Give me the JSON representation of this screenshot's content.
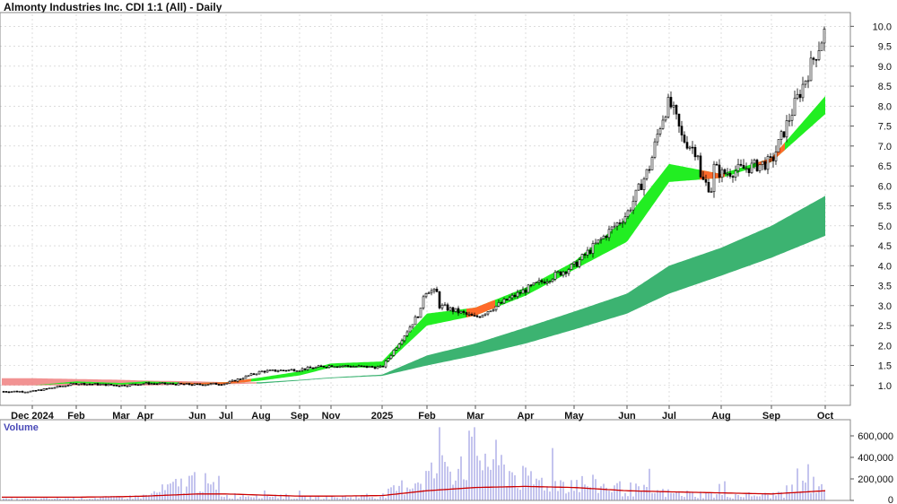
{
  "title": "Almonty Industries Inc. CDI 1:1 (All) - Daily",
  "volume_label": "Volume",
  "colors": {
    "price_bar": "#000000",
    "short_band_up": "#22ee22",
    "short_band_down": "#ff6a2a",
    "long_band": "#3cb371",
    "long_band_early": "#f08080",
    "volume_bar": "#8888dd",
    "volume_avg": "#cc0000",
    "grid": "#c8c8c8"
  },
  "chart_data": [
    {
      "type": "candlestick",
      "title": "Almonty Industries Inc. CDI 1:1 (All) - Daily",
      "x_ticks": [
        "Dec 2024",
        "Feb",
        "Mar",
        "Apr",
        "Jun",
        "Jul",
        "Aug",
        "Sep",
        "Nov",
        "2025",
        "Feb",
        "Mar",
        "Apr",
        "May",
        "Jun",
        "Jul",
        "Aug",
        "Sep",
        "Oct"
      ],
      "y_ticks": [
        "1.0",
        "1.5",
        "2.0",
        "2.5",
        "3.0",
        "3.5",
        "4.0",
        "4.5",
        "5.0",
        "5.5",
        "6.0",
        "6.5",
        "7.0",
        "7.5",
        "8.0",
        "8.5",
        "9.0",
        "9.5",
        "10.0"
      ],
      "ylim": [
        0.5,
        10.3
      ],
      "price_series": [
        [
          "Dec 2024",
          0.85
        ],
        [
          "Feb",
          1.05
        ],
        [
          "Mar",
          1.0
        ],
        [
          "Apr",
          1.05
        ],
        [
          "Jun",
          1.02
        ],
        [
          "Jul",
          1.05
        ],
        [
          "Aug",
          1.35
        ],
        [
          "Sep",
          1.4
        ],
        [
          "Nov",
          1.5
        ],
        [
          "2025",
          1.45
        ],
        [
          "Feb",
          3.1
        ],
        [
          "Mar",
          2.7
        ],
        [
          "Apr",
          3.4
        ],
        [
          "May",
          4.0
        ],
        [
          "Jun",
          5.3
        ],
        [
          "Jul",
          7.5
        ],
        [
          "Aug",
          6.3
        ],
        [
          "Sep",
          6.6
        ],
        [
          "Oct",
          9.9
        ]
      ],
      "short_band": [
        [
          "Dec 2024",
          1.0,
          1.0
        ],
        [
          "Feb",
          1.06,
          1.1
        ],
        [
          "Mar",
          1.02,
          1.06
        ],
        [
          "Apr",
          1.05,
          1.1
        ],
        [
          "Jun",
          1.03,
          1.06
        ],
        [
          "Jul",
          1.04,
          1.08
        ],
        [
          "Aug",
          1.12,
          1.2
        ],
        [
          "Sep",
          1.25,
          1.35
        ],
        [
          "Nov",
          1.45,
          1.55
        ],
        [
          "2025",
          1.45,
          1.6
        ],
        [
          "Feb",
          2.5,
          2.8
        ],
        [
          "Mar",
          2.75,
          2.95
        ],
        [
          "Apr",
          3.25,
          3.45
        ],
        [
          "May",
          3.9,
          4.1
        ],
        [
          "Jun",
          4.6,
          5.2
        ],
        [
          "Jul",
          6.1,
          6.55
        ],
        [
          "Aug",
          6.2,
          6.3
        ],
        [
          "Sep",
          6.6,
          6.7
        ],
        [
          "Oct",
          7.8,
          8.25
        ]
      ],
      "long_band": [
        [
          "Dec 2024",
          1.0,
          1.18
        ],
        [
          "Feb",
          1.0,
          1.16
        ],
        [
          "Mar",
          1.0,
          1.14
        ],
        [
          "Apr",
          1.0,
          1.12
        ],
        [
          "Jun",
          1.02,
          1.1
        ],
        [
          "Jul",
          1.03,
          1.08
        ],
        [
          "Aug",
          1.05,
          1.08
        ],
        [
          "Sep",
          1.12,
          1.14
        ],
        [
          "Nov",
          1.18,
          1.2
        ],
        [
          "2025",
          1.24,
          1.27
        ],
        [
          "Feb",
          1.5,
          1.75
        ],
        [
          "Mar",
          1.75,
          2.05
        ],
        [
          "Apr",
          2.05,
          2.45
        ],
        [
          "May",
          2.4,
          2.85
        ],
        [
          "Jun",
          2.8,
          3.3
        ],
        [
          "Jul",
          3.3,
          4.0
        ],
        [
          "Aug",
          3.75,
          4.45
        ],
        [
          "Sep",
          4.2,
          5.0
        ],
        [
          "Oct",
          4.75,
          5.75
        ]
      ]
    },
    {
      "type": "bar",
      "title": "Volume",
      "y_ticks": [
        "0",
        "200,000",
        "400,000",
        "600,000"
      ],
      "ylim": [
        0,
        700000
      ],
      "volume": [
        [
          "Dec 2024",
          20000
        ],
        [
          "Feb",
          30000
        ],
        [
          "Mar",
          40000
        ],
        [
          "Apr",
          60000
        ],
        [
          "Jun",
          300000
        ],
        [
          "Jul",
          60000
        ],
        [
          "Aug",
          90000
        ],
        [
          "Sep",
          40000
        ],
        [
          "Nov",
          40000
        ],
        [
          "2025",
          60000
        ],
        [
          "Feb",
          350000
        ],
        [
          "Mar",
          680000
        ],
        [
          "Apr",
          280000
        ],
        [
          "May",
          250000
        ],
        [
          "Jun",
          160000
        ],
        [
          "Jul",
          100000
        ],
        [
          "Aug",
          80000
        ],
        [
          "Sep",
          70000
        ],
        [
          "Oct",
          270000
        ]
      ],
      "volume_avg": [
        [
          "Dec 2024",
          30000
        ],
        [
          "Feb",
          30000
        ],
        [
          "Mar",
          35000
        ],
        [
          "Apr",
          40000
        ],
        [
          "Jun",
          60000
        ],
        [
          "Jul",
          60000
        ],
        [
          "Aug",
          50000
        ],
        [
          "Sep",
          40000
        ],
        [
          "Nov",
          40000
        ],
        [
          "2025",
          45000
        ],
        [
          "Feb",
          90000
        ],
        [
          "Mar",
          120000
        ],
        [
          "Apr",
          130000
        ],
        [
          "May",
          120000
        ],
        [
          "Jun",
          90000
        ],
        [
          "Jul",
          80000
        ],
        [
          "Aug",
          70000
        ],
        [
          "Sep",
          60000
        ],
        [
          "Oct",
          90000
        ]
      ]
    }
  ]
}
